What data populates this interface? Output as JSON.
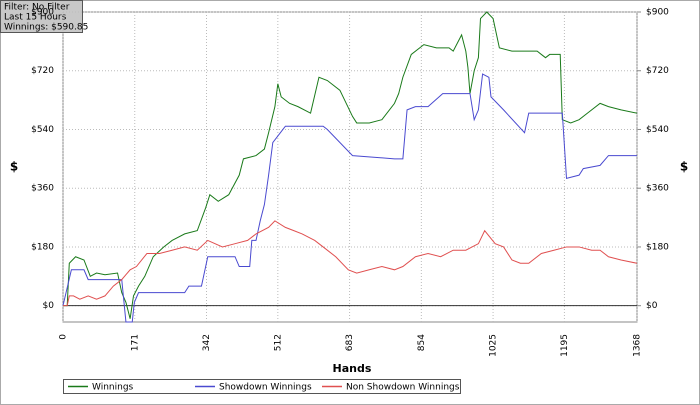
{
  "info": {
    "filter": "Filter: No Filter",
    "period": "Last  15 Hours",
    "winnings": "Winnings: $590.85"
  },
  "chart_data": {
    "type": "line",
    "x_label": "Hands",
    "y_label": "$",
    "y2_label": "$",
    "xlim": [
      0,
      1368
    ],
    "xticks": [
      0,
      171,
      342,
      512,
      683,
      854,
      1025,
      1195,
      1368
    ],
    "ylim": [
      -50,
      900
    ],
    "yticks": [
      {
        "value": 0,
        "label": "$0"
      },
      {
        "value": 180,
        "label": "$180"
      },
      {
        "value": 360,
        "label": "$360"
      },
      {
        "value": 540,
        "label": "$540"
      },
      {
        "value": 720,
        "label": "$720"
      },
      {
        "value": 900,
        "label": "$900"
      }
    ],
    "y2lim": [
      -50,
      900
    ],
    "y2ticks": [
      {
        "value": 0,
        "label": "$0"
      },
      {
        "value": 180,
        "label": "$180"
      },
      {
        "value": 360,
        "label": "$360"
      },
      {
        "value": 540,
        "label": "$540"
      },
      {
        "value": 720,
        "label": "$720"
      },
      {
        "value": 900,
        "label": "$900"
      }
    ],
    "grid": true,
    "series": [
      {
        "name": "Winnings",
        "color": "#1a7a1a",
        "x": [
          0,
          10,
          15,
          30,
          50,
          65,
          80,
          100,
          130,
          140,
          150,
          160,
          168,
          180,
          195,
          215,
          240,
          260,
          290,
          320,
          340,
          350,
          370,
          395,
          420,
          430,
          460,
          480,
          490,
          505,
          512,
          520,
          540,
          560,
          590,
          610,
          630,
          660,
          690,
          700,
          730,
          760,
          790,
          800,
          810,
          830,
          860,
          890,
          920,
          930,
          950,
          960,
          965,
          970,
          980,
          990,
          995,
          1010,
          1025,
          1040,
          1070,
          1100,
          1130,
          1140,
          1150,
          1160,
          1185,
          1190,
          1210,
          1230,
          1250,
          1280,
          1300,
          1330,
          1368
        ],
        "values": [
          0,
          0,
          130,
          150,
          140,
          90,
          100,
          95,
          100,
          40,
          10,
          -40,
          30,
          60,
          90,
          150,
          180,
          200,
          220,
          230,
          300,
          340,
          320,
          340,
          400,
          450,
          460,
          480,
          530,
          610,
          680,
          640,
          620,
          610,
          590,
          700,
          690,
          660,
          580,
          560,
          560,
          570,
          620,
          650,
          700,
          770,
          800,
          790,
          790,
          780,
          830,
          780,
          730,
          650,
          720,
          760,
          880,
          900,
          880,
          790,
          780,
          780,
          780,
          770,
          760,
          770,
          770,
          570,
          560,
          570,
          590,
          620,
          610,
          600,
          590
        ]
      },
      {
        "name": "Showdown Winnings",
        "color": "#4a4ad0",
        "x": [
          0,
          20,
          50,
          60,
          80,
          140,
          150,
          165,
          170,
          180,
          290,
          300,
          330,
          345,
          410,
          420,
          445,
          450,
          460,
          470,
          480,
          490,
          500,
          530,
          620,
          630,
          690,
          790,
          810,
          820,
          840,
          870,
          905,
          970,
          980,
          990,
          1000,
          1015,
          1020,
          1035,
          1050,
          1100,
          1110,
          1190,
          1200,
          1230,
          1240,
          1280,
          1300,
          1368
        ],
        "values": [
          0,
          110,
          110,
          80,
          80,
          80,
          -50,
          -50,
          10,
          40,
          40,
          60,
          60,
          150,
          150,
          120,
          120,
          200,
          200,
          260,
          310,
          400,
          500,
          550,
          550,
          540,
          460,
          450,
          450,
          600,
          610,
          610,
          650,
          650,
          570,
          600,
          710,
          700,
          640,
          620,
          600,
          530,
          590,
          590,
          390,
          400,
          420,
          430,
          460,
          460
        ]
      },
      {
        "name": "Non Showdown Winnings",
        "color": "#e05050",
        "x": [
          0,
          10,
          15,
          25,
          40,
          60,
          80,
          100,
          120,
          140,
          160,
          175,
          200,
          230,
          260,
          290,
          320,
          345,
          380,
          410,
          440,
          460,
          490,
          505,
          530,
          550,
          570,
          600,
          620,
          650,
          680,
          700,
          730,
          760,
          790,
          810,
          840,
          870,
          900,
          930,
          960,
          990,
          1005,
          1030,
          1050,
          1070,
          1090,
          1110,
          1140,
          1170,
          1200,
          1230,
          1260,
          1280,
          1300,
          1330,
          1368
        ],
        "values": [
          0,
          0,
          30,
          30,
          20,
          30,
          20,
          30,
          60,
          80,
          110,
          120,
          160,
          160,
          170,
          180,
          170,
          200,
          180,
          190,
          200,
          220,
          240,
          260,
          240,
          230,
          220,
          200,
          180,
          150,
          110,
          100,
          110,
          120,
          110,
          120,
          150,
          160,
          150,
          170,
          170,
          190,
          230,
          190,
          180,
          140,
          130,
          130,
          160,
          170,
          180,
          180,
          170,
          170,
          150,
          140,
          130
        ]
      }
    ]
  }
}
